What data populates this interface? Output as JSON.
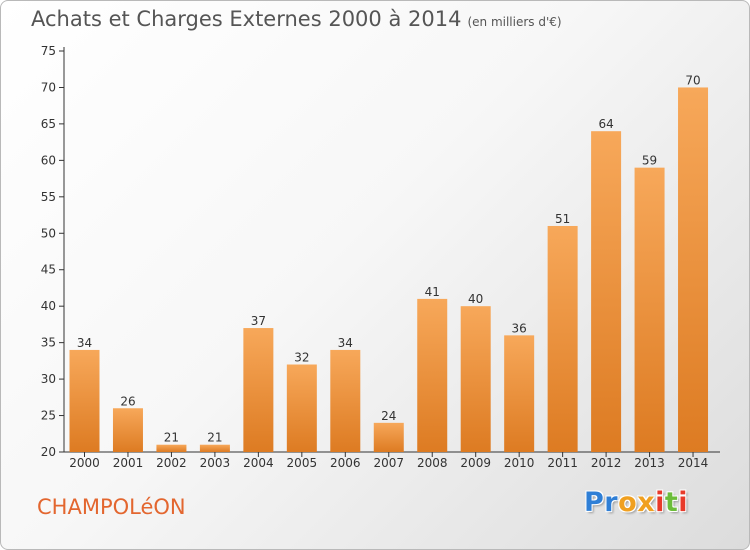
{
  "header": {
    "title": "Achats et Charges Externes 2000 à 2014",
    "subtitle": "(en milliers d'€)"
  },
  "footer": {
    "commune": "CHAMPOLéON",
    "logo_letters": [
      "P",
      "r",
      "o",
      "x",
      "i",
      "t",
      "i"
    ],
    "logo_colors": [
      "#2f7fd6",
      "#2f7fd6",
      "#f0a020",
      "#f0a020",
      "#e83a2a",
      "#6cbd3a",
      "#e83a2a"
    ]
  },
  "colors": {
    "bar_top": "#f7a85a",
    "bar_bottom": "#dd7b22",
    "axis": "#333333",
    "text": "#333333"
  },
  "chart_data": {
    "type": "bar",
    "categories": [
      "2000",
      "2001",
      "2002",
      "2003",
      "2004",
      "2005",
      "2006",
      "2007",
      "2008",
      "2009",
      "2010",
      "2011",
      "2012",
      "2013",
      "2014"
    ],
    "values": [
      34,
      26,
      21,
      21,
      37,
      32,
      34,
      24,
      41,
      40,
      36,
      51,
      64,
      59,
      70
    ],
    "data_labels": [
      "34",
      "26",
      "21",
      "21",
      "37",
      "32",
      "34",
      "24",
      "41",
      "40",
      "36",
      "51",
      "64",
      "59",
      "70"
    ],
    "ylim": [
      20,
      75
    ],
    "yticks": [
      20,
      25,
      30,
      35,
      40,
      45,
      50,
      55,
      60,
      65,
      70,
      75
    ],
    "grid": false
  }
}
